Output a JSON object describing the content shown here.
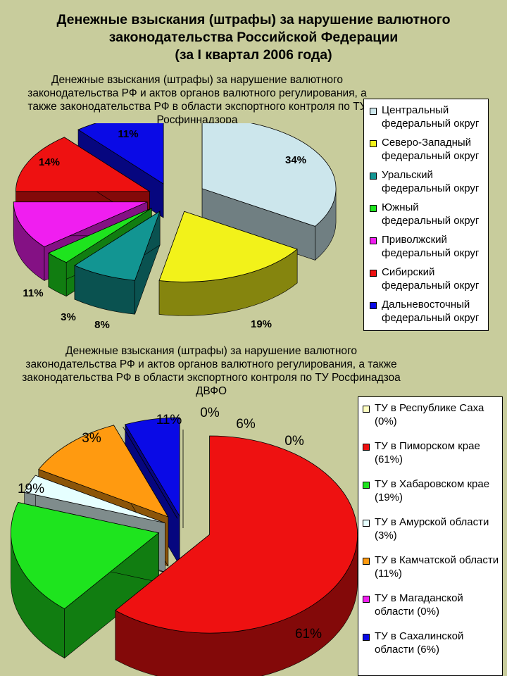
{
  "page": {
    "title_lines": [
      "Денежные взыскания (штрафы) за нарушение валютного",
      "законодательства Российской Федерации",
      "(за I квартал 2006 года)"
    ]
  },
  "chart_data": [
    {
      "type": "pie",
      "title_lines": [
        "Денежные взыскания (штрафы) за нарушение валютного",
        "законодательства РФ и актов органов валютного регулирования, а",
        "также законодательства РФ в области экспортного контроля по ТУ",
        "Росфиннадзора"
      ],
      "series": [
        {
          "name": "Центральный федеральный округ",
          "legend_lines": [
            "Центральный",
            "федеральный округ"
          ],
          "value": 34,
          "label": "34%",
          "color": "#cce6ec"
        },
        {
          "name": "Северо-Западный федеральный округ",
          "legend_lines": [
            "Северо-Западный",
            "федеральный округ"
          ],
          "value": 19,
          "label": "19%",
          "color": "#f2f21a"
        },
        {
          "name": "Уральский федеральный округ",
          "legend_lines": [
            "Уральский",
            "федеральный округ"
          ],
          "value": 8,
          "label": "8%",
          "color": "#129592"
        },
        {
          "name": "Южный федеральный округ",
          "legend_lines": [
            "Южный",
            "федеральный округ"
          ],
          "value": 3,
          "label": "3%",
          "color": "#1ee41e"
        },
        {
          "name": "Приволжский федеральный округ",
          "legend_lines": [
            "Приволжский",
            "федеральный округ"
          ],
          "value": 11,
          "label": "11%",
          "color": "#f01ef0"
        },
        {
          "name": "Сибирский федеральный округ",
          "legend_lines": [
            "Сибирский",
            "федеральный округ"
          ],
          "value": 14,
          "label": "14%",
          "color": "#ee1111"
        },
        {
          "name": "Дальневосточный федеральный округ",
          "legend_lines": [
            "Дальневосточный",
            "федеральный округ"
          ],
          "value": 11,
          "label": "11%",
          "color": "#0a0ae6"
        }
      ],
      "legend_placement": "right"
    },
    {
      "type": "pie",
      "title_lines": [
        "Денежные взыскания (штрафы) за нарушение валютного",
        "законодательства РФ и актов органов валютного регулирования, а также",
        "законодательства РФ в области экспортного контроля по ТУ Росфинадзоа",
        "ДВФО"
      ],
      "series": [
        {
          "name": "ТУ в Республике Саха (0%)",
          "legend_lines": [
            "ТУ в Республике Саха",
            "(0%)"
          ],
          "value": 0,
          "label": "0%",
          "color": "#ffffc0"
        },
        {
          "name": "ТУ в Пиморском крае (61%)",
          "legend_lines": [
            "ТУ в Пиморском крае",
            "(61%)"
          ],
          "value": 61,
          "label": "61%",
          "color": "#ee1111"
        },
        {
          "name": "ТУ в Хабаровском крае (19%)",
          "legend_lines": [
            "ТУ в Хабаровском крае",
            "(19%)"
          ],
          "value": 19,
          "label": "19%",
          "color": "#1ee41e"
        },
        {
          "name": "ТУ в Амурской области (3%)",
          "legend_lines": [
            "ТУ в Амурской области",
            "(3%)"
          ],
          "value": 3,
          "label": "3%",
          "color": "#e6ffff"
        },
        {
          "name": "ТУ в Камчатской области (11%)",
          "legend_lines": [
            "ТУ в Камчатской области",
            "(11%)"
          ],
          "value": 11,
          "label": "11%",
          "color": "#ff9a10"
        },
        {
          "name": "ТУ в Магаданской области (0%)",
          "legend_lines": [
            "ТУ в Магаданской",
            "области (0%)"
          ],
          "value": 0,
          "label": "0%",
          "color": "#f01ef0"
        },
        {
          "name": "ТУ в Сахалинской области (6%)",
          "legend_lines": [
            "ТУ в Сахалинской",
            "области (6%)"
          ],
          "value": 6,
          "label": "6%",
          "color": "#0a0ae6"
        }
      ],
      "legend_placement": "right"
    }
  ]
}
